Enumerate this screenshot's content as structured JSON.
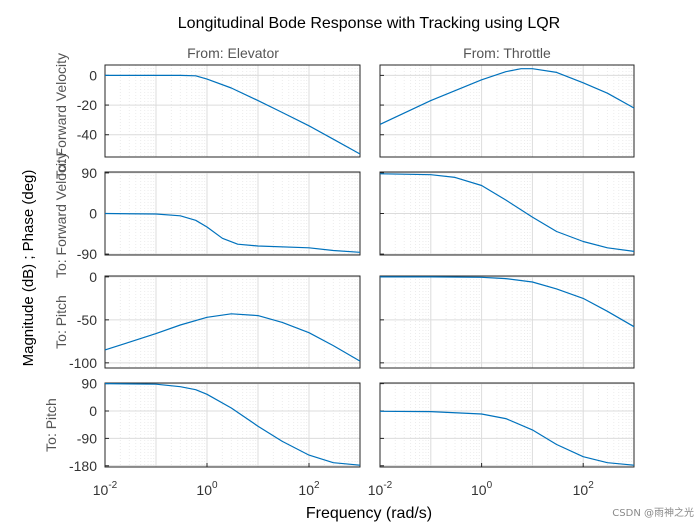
{
  "chart_data": {
    "type": "line",
    "title": "Longitudinal Bode Response with Tracking using LQR",
    "ylabel": "Magnitude (dB) ; Phase (deg)",
    "xlabel": "Frequency  (rad/s)",
    "xscale": "log",
    "xlim": [
      0.01,
      1000
    ],
    "x_ticks": [
      {
        "base": "10",
        "exp": "-2"
      },
      {
        "base": "10",
        "exp": "0"
      },
      {
        "base": "10",
        "exp": "2"
      }
    ],
    "columns": [
      "From: Elevator",
      "From: Throttle"
    ],
    "rows": [
      {
        "label": "To: Forward Velocity",
        "kind": "magnitude",
        "ylim": [
          -55,
          7
        ],
        "yticks": [
          0,
          -20,
          -40
        ]
      },
      {
        "label": "To: Forward Velocity",
        "kind": "phase",
        "ylim": [
          -92,
          92
        ],
        "yticks": [
          90,
          0,
          -90
        ]
      },
      {
        "label": "To: Pitch",
        "kind": "magnitude",
        "ylim": [
          -106,
          1
        ],
        "yticks": [
          0,
          -50,
          -100
        ]
      },
      {
        "label": "To: Pitch",
        "kind": "phase",
        "ylim": [
          -184,
          92
        ],
        "yticks": [
          90,
          0,
          -90,
          -180
        ]
      }
    ],
    "series": [
      {
        "name": "Elevator to Forward Velocity (magnitude)",
        "row": 0,
        "col": 0,
        "x": [
          0.01,
          0.1,
          0.3,
          0.6,
          1,
          3,
          10,
          30,
          100,
          300,
          1000
        ],
        "values": [
          0,
          0,
          0,
          -0.3,
          -2.5,
          -8.5,
          -17,
          -25,
          -34,
          -43,
          -53
        ]
      },
      {
        "name": "Throttle to Forward Velocity (magnitude)",
        "row": 0,
        "col": 1,
        "x": [
          0.01,
          0.1,
          1,
          3,
          6,
          10,
          30,
          100,
          300,
          1000
        ],
        "values": [
          -33,
          -17,
          -3,
          2.5,
          4.5,
          4.5,
          2,
          -5,
          -12,
          -22
        ]
      },
      {
        "name": "Elevator to Forward Velocity (phase)",
        "row": 1,
        "col": 0,
        "x": [
          0.01,
          0.1,
          0.3,
          0.6,
          1,
          2,
          4,
          10,
          100,
          300,
          1000
        ],
        "values": [
          0,
          -1,
          -5,
          -15,
          -30,
          -55,
          -68,
          -72,
          -76,
          -82,
          -86
        ]
      },
      {
        "name": "Throttle to Forward Velocity (phase)",
        "row": 1,
        "col": 1,
        "x": [
          0.01,
          0.1,
          0.3,
          1,
          3,
          10,
          30,
          100,
          300,
          1000
        ],
        "values": [
          88,
          86,
          80,
          62,
          30,
          -8,
          -40,
          -62,
          -76,
          -84
        ]
      },
      {
        "name": "Elevator to Pitch (magnitude)",
        "row": 2,
        "col": 0,
        "x": [
          0.01,
          0.03,
          0.1,
          0.3,
          1,
          3,
          10,
          30,
          100,
          300,
          1000
        ],
        "values": [
          -85,
          -76,
          -66,
          -56,
          -47,
          -43,
          -45,
          -53,
          -65,
          -80,
          -98
        ]
      },
      {
        "name": "Throttle to Pitch (magnitude)",
        "row": 2,
        "col": 1,
        "x": [
          0.01,
          0.1,
          1,
          3,
          10,
          30,
          100,
          300,
          1000
        ],
        "values": [
          0,
          0,
          -0.5,
          -2,
          -6,
          -14,
          -25,
          -40,
          -58
        ]
      },
      {
        "name": "Elevator to Pitch (phase)",
        "row": 3,
        "col": 0,
        "x": [
          0.01,
          0.1,
          0.3,
          0.6,
          1,
          3,
          10,
          30,
          100,
          300,
          1000
        ],
        "values": [
          90,
          88,
          80,
          70,
          55,
          10,
          -50,
          -100,
          -145,
          -170,
          -178
        ]
      },
      {
        "name": "Throttle to Pitch (phase)",
        "row": 3,
        "col": 1,
        "x": [
          0.01,
          0.1,
          1,
          3,
          10,
          30,
          100,
          300,
          1000
        ],
        "values": [
          -1,
          -2,
          -10,
          -25,
          -62,
          -110,
          -150,
          -170,
          -178
        ]
      }
    ]
  },
  "watermark": "CSDN @雨神之光",
  "colors": {
    "line": "#0072BD",
    "axis": "#262626",
    "grid": "#dcdcdc",
    "minor_grid": "#ececec"
  }
}
